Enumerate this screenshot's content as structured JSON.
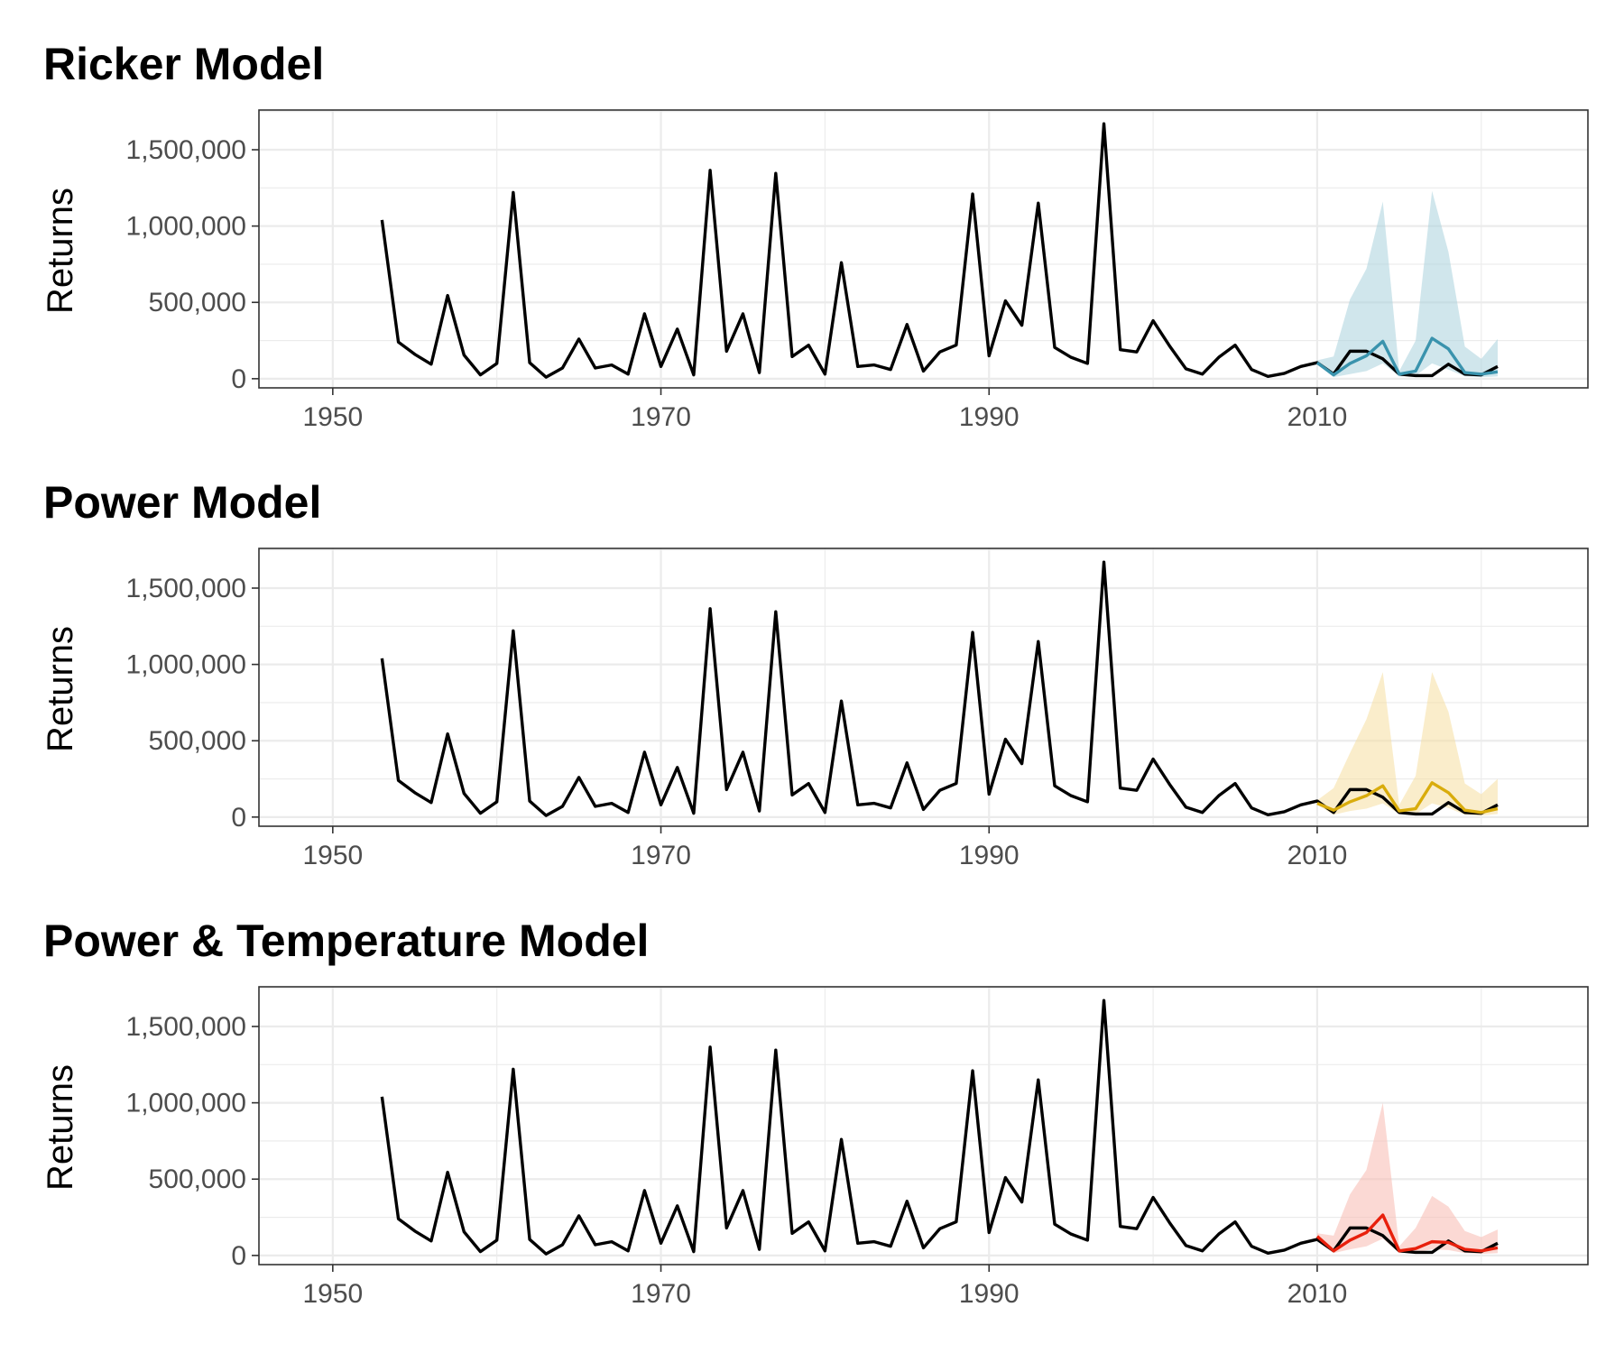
{
  "chart_data": [
    {
      "type": "line",
      "title": "Ricker Model",
      "xlabel": "",
      "ylabel": "Returns",
      "xlim": [
        1945.5,
        2026.5
      ],
      "ylim": [
        -60000,
        1760000
      ],
      "x_ticks": [
        1950,
        1970,
        1990,
        2010
      ],
      "x_tick_labels": [
        "1950",
        "1970",
        "1990",
        "2010"
      ],
      "y_ticks": [
        0,
        500000,
        1000000,
        1500000
      ],
      "y_tick_labels": [
        "0",
        "500,000",
        "1,000,000",
        "1,500,000"
      ],
      "grid": true,
      "legend": "none",
      "series": [
        {
          "role": "observed",
          "color": "#000000",
          "x": [
            1953,
            1954,
            1955,
            1956,
            1957,
            1958,
            1959,
            1960,
            1961,
            1962,
            1963,
            1964,
            1965,
            1966,
            1967,
            1968,
            1969,
            1970,
            1971,
            1972,
            1973,
            1974,
            1975,
            1976,
            1977,
            1978,
            1979,
            1980,
            1981,
            1982,
            1983,
            1984,
            1985,
            1986,
            1987,
            1988,
            1989,
            1990,
            1991,
            1992,
            1993,
            1994,
            1995,
            1996,
            1997,
            1998,
            1999,
            2000,
            2001,
            2002,
            2003,
            2004,
            2005,
            2006,
            2007,
            2008,
            2009,
            2010,
            2011,
            2012,
            2013,
            2014,
            2015,
            2016,
            2017,
            2018,
            2019,
            2020,
            2021
          ],
          "y": [
            1040000,
            240000,
            160000,
            95000,
            545000,
            155000,
            25000,
            100000,
            1220000,
            105000,
            10000,
            70000,
            260000,
            70000,
            90000,
            30000,
            425000,
            80000,
            325000,
            25000,
            1365000,
            180000,
            425000,
            40000,
            1345000,
            145000,
            220000,
            30000,
            760000,
            80000,
            90000,
            60000,
            355000,
            50000,
            175000,
            220000,
            1210000,
            150000,
            510000,
            350000,
            1150000,
            205000,
            140000,
            100000,
            1670000,
            190000,
            175000,
            380000,
            215000,
            65000,
            30000,
            140000,
            220000,
            60000,
            15000,
            35000,
            80000,
            105000,
            30000,
            180000,
            180000,
            130000,
            30000,
            20000,
            20000,
            95000,
            30000,
            25000,
            80000
          ]
        },
        {
          "role": "forecast",
          "color": "#3a93ad",
          "band_color": "#a9d1dc",
          "x": [
            2010,
            2011,
            2012,
            2013,
            2014,
            2015,
            2016,
            2017,
            2018,
            2019,
            2020,
            2021
          ],
          "y": [
            105000,
            25000,
            100000,
            150000,
            245000,
            30000,
            50000,
            265000,
            195000,
            40000,
            30000,
            45000
          ],
          "lower": [
            95000,
            10000,
            30000,
            50000,
            100000,
            15000,
            20000,
            100000,
            60000,
            15000,
            10000,
            15000
          ],
          "upper": [
            120000,
            145000,
            520000,
            720000,
            1160000,
            50000,
            250000,
            1230000,
            830000,
            210000,
            130000,
            260000
          ]
        }
      ]
    },
    {
      "type": "line",
      "title": "Power Model",
      "xlabel": "",
      "ylabel": "Returns",
      "xlim": [
        1945.5,
        2026.5
      ],
      "ylim": [
        -60000,
        1760000
      ],
      "x_ticks": [
        1950,
        1970,
        1990,
        2010
      ],
      "x_tick_labels": [
        "1950",
        "1970",
        "1990",
        "2010"
      ],
      "y_ticks": [
        0,
        500000,
        1000000,
        1500000
      ],
      "y_tick_labels": [
        "0",
        "500,000",
        "1,000,000",
        "1,500,000"
      ],
      "grid": true,
      "legend": "none",
      "series": [
        {
          "role": "observed",
          "color": "#000000",
          "x": [
            1953,
            1954,
            1955,
            1956,
            1957,
            1958,
            1959,
            1960,
            1961,
            1962,
            1963,
            1964,
            1965,
            1966,
            1967,
            1968,
            1969,
            1970,
            1971,
            1972,
            1973,
            1974,
            1975,
            1976,
            1977,
            1978,
            1979,
            1980,
            1981,
            1982,
            1983,
            1984,
            1985,
            1986,
            1987,
            1988,
            1989,
            1990,
            1991,
            1992,
            1993,
            1994,
            1995,
            1996,
            1997,
            1998,
            1999,
            2000,
            2001,
            2002,
            2003,
            2004,
            2005,
            2006,
            2007,
            2008,
            2009,
            2010,
            2011,
            2012,
            2013,
            2014,
            2015,
            2016,
            2017,
            2018,
            2019,
            2020,
            2021
          ],
          "y": [
            1040000,
            240000,
            160000,
            95000,
            545000,
            155000,
            25000,
            100000,
            1220000,
            105000,
            10000,
            70000,
            260000,
            70000,
            90000,
            30000,
            425000,
            80000,
            325000,
            25000,
            1365000,
            180000,
            425000,
            40000,
            1345000,
            145000,
            220000,
            30000,
            760000,
            80000,
            90000,
            60000,
            355000,
            50000,
            175000,
            220000,
            1210000,
            150000,
            510000,
            350000,
            1150000,
            205000,
            140000,
            100000,
            1670000,
            190000,
            175000,
            380000,
            215000,
            65000,
            30000,
            140000,
            220000,
            60000,
            15000,
            35000,
            80000,
            105000,
            30000,
            180000,
            180000,
            130000,
            30000,
            20000,
            20000,
            95000,
            30000,
            25000,
            80000
          ]
        },
        {
          "role": "forecast",
          "color": "#d9ac0c",
          "band_color": "#f5dfa0",
          "x": [
            2010,
            2011,
            2012,
            2013,
            2014,
            2015,
            2016,
            2017,
            2018,
            2019,
            2020,
            2021
          ],
          "y": [
            90000,
            45000,
            100000,
            140000,
            205000,
            40000,
            55000,
            225000,
            160000,
            45000,
            30000,
            55000
          ],
          "lower": [
            80000,
            15000,
            40000,
            55000,
            90000,
            20000,
            20000,
            90000,
            60000,
            15000,
            10000,
            20000
          ],
          "upper": [
            110000,
            190000,
            420000,
            640000,
            950000,
            80000,
            270000,
            950000,
            690000,
            220000,
            150000,
            250000
          ]
        }
      ]
    },
    {
      "type": "line",
      "title": "Power & Temperature Model",
      "xlabel": "",
      "ylabel": "Returns",
      "xlim": [
        1945.5,
        2026.5
      ],
      "ylim": [
        -60000,
        1760000
      ],
      "x_ticks": [
        1950,
        1970,
        1990,
        2010
      ],
      "x_tick_labels": [
        "1950",
        "1970",
        "1990",
        "2010"
      ],
      "y_ticks": [
        0,
        500000,
        1000000,
        1500000
      ],
      "y_tick_labels": [
        "0",
        "500,000",
        "1,000,000",
        "1,500,000"
      ],
      "grid": true,
      "legend": "none",
      "series": [
        {
          "role": "observed",
          "color": "#000000",
          "x": [
            1953,
            1954,
            1955,
            1956,
            1957,
            1958,
            1959,
            1960,
            1961,
            1962,
            1963,
            1964,
            1965,
            1966,
            1967,
            1968,
            1969,
            1970,
            1971,
            1972,
            1973,
            1974,
            1975,
            1976,
            1977,
            1978,
            1979,
            1980,
            1981,
            1982,
            1983,
            1984,
            1985,
            1986,
            1987,
            1988,
            1989,
            1990,
            1991,
            1992,
            1993,
            1994,
            1995,
            1996,
            1997,
            1998,
            1999,
            2000,
            2001,
            2002,
            2003,
            2004,
            2005,
            2006,
            2007,
            2008,
            2009,
            2010,
            2011,
            2012,
            2013,
            2014,
            2015,
            2016,
            2017,
            2018,
            2019,
            2020,
            2021
          ],
          "y": [
            1040000,
            240000,
            160000,
            95000,
            545000,
            155000,
            25000,
            100000,
            1220000,
            105000,
            10000,
            70000,
            260000,
            70000,
            90000,
            30000,
            425000,
            80000,
            325000,
            25000,
            1365000,
            180000,
            425000,
            40000,
            1345000,
            145000,
            220000,
            30000,
            760000,
            80000,
            90000,
            60000,
            355000,
            50000,
            175000,
            220000,
            1210000,
            150000,
            510000,
            350000,
            1150000,
            205000,
            140000,
            100000,
            1670000,
            190000,
            175000,
            380000,
            215000,
            65000,
            30000,
            140000,
            220000,
            60000,
            15000,
            35000,
            80000,
            105000,
            30000,
            180000,
            180000,
            130000,
            30000,
            20000,
            20000,
            95000,
            30000,
            25000,
            80000
          ]
        },
        {
          "role": "forecast",
          "color": "#e8200c",
          "band_color": "#f8b9b0",
          "x": [
            2010,
            2011,
            2012,
            2013,
            2014,
            2015,
            2016,
            2017,
            2018,
            2019,
            2020,
            2021
          ],
          "y": [
            125000,
            30000,
            100000,
            150000,
            265000,
            30000,
            45000,
            90000,
            85000,
            40000,
            30000,
            50000
          ],
          "lower": [
            100000,
            15000,
            40000,
            60000,
            110000,
            15000,
            20000,
            40000,
            35000,
            15000,
            10000,
            15000
          ],
          "upper": [
            145000,
            130000,
            400000,
            560000,
            1000000,
            60000,
            180000,
            390000,
            320000,
            160000,
            120000,
            170000
          ]
        }
      ]
    }
  ]
}
